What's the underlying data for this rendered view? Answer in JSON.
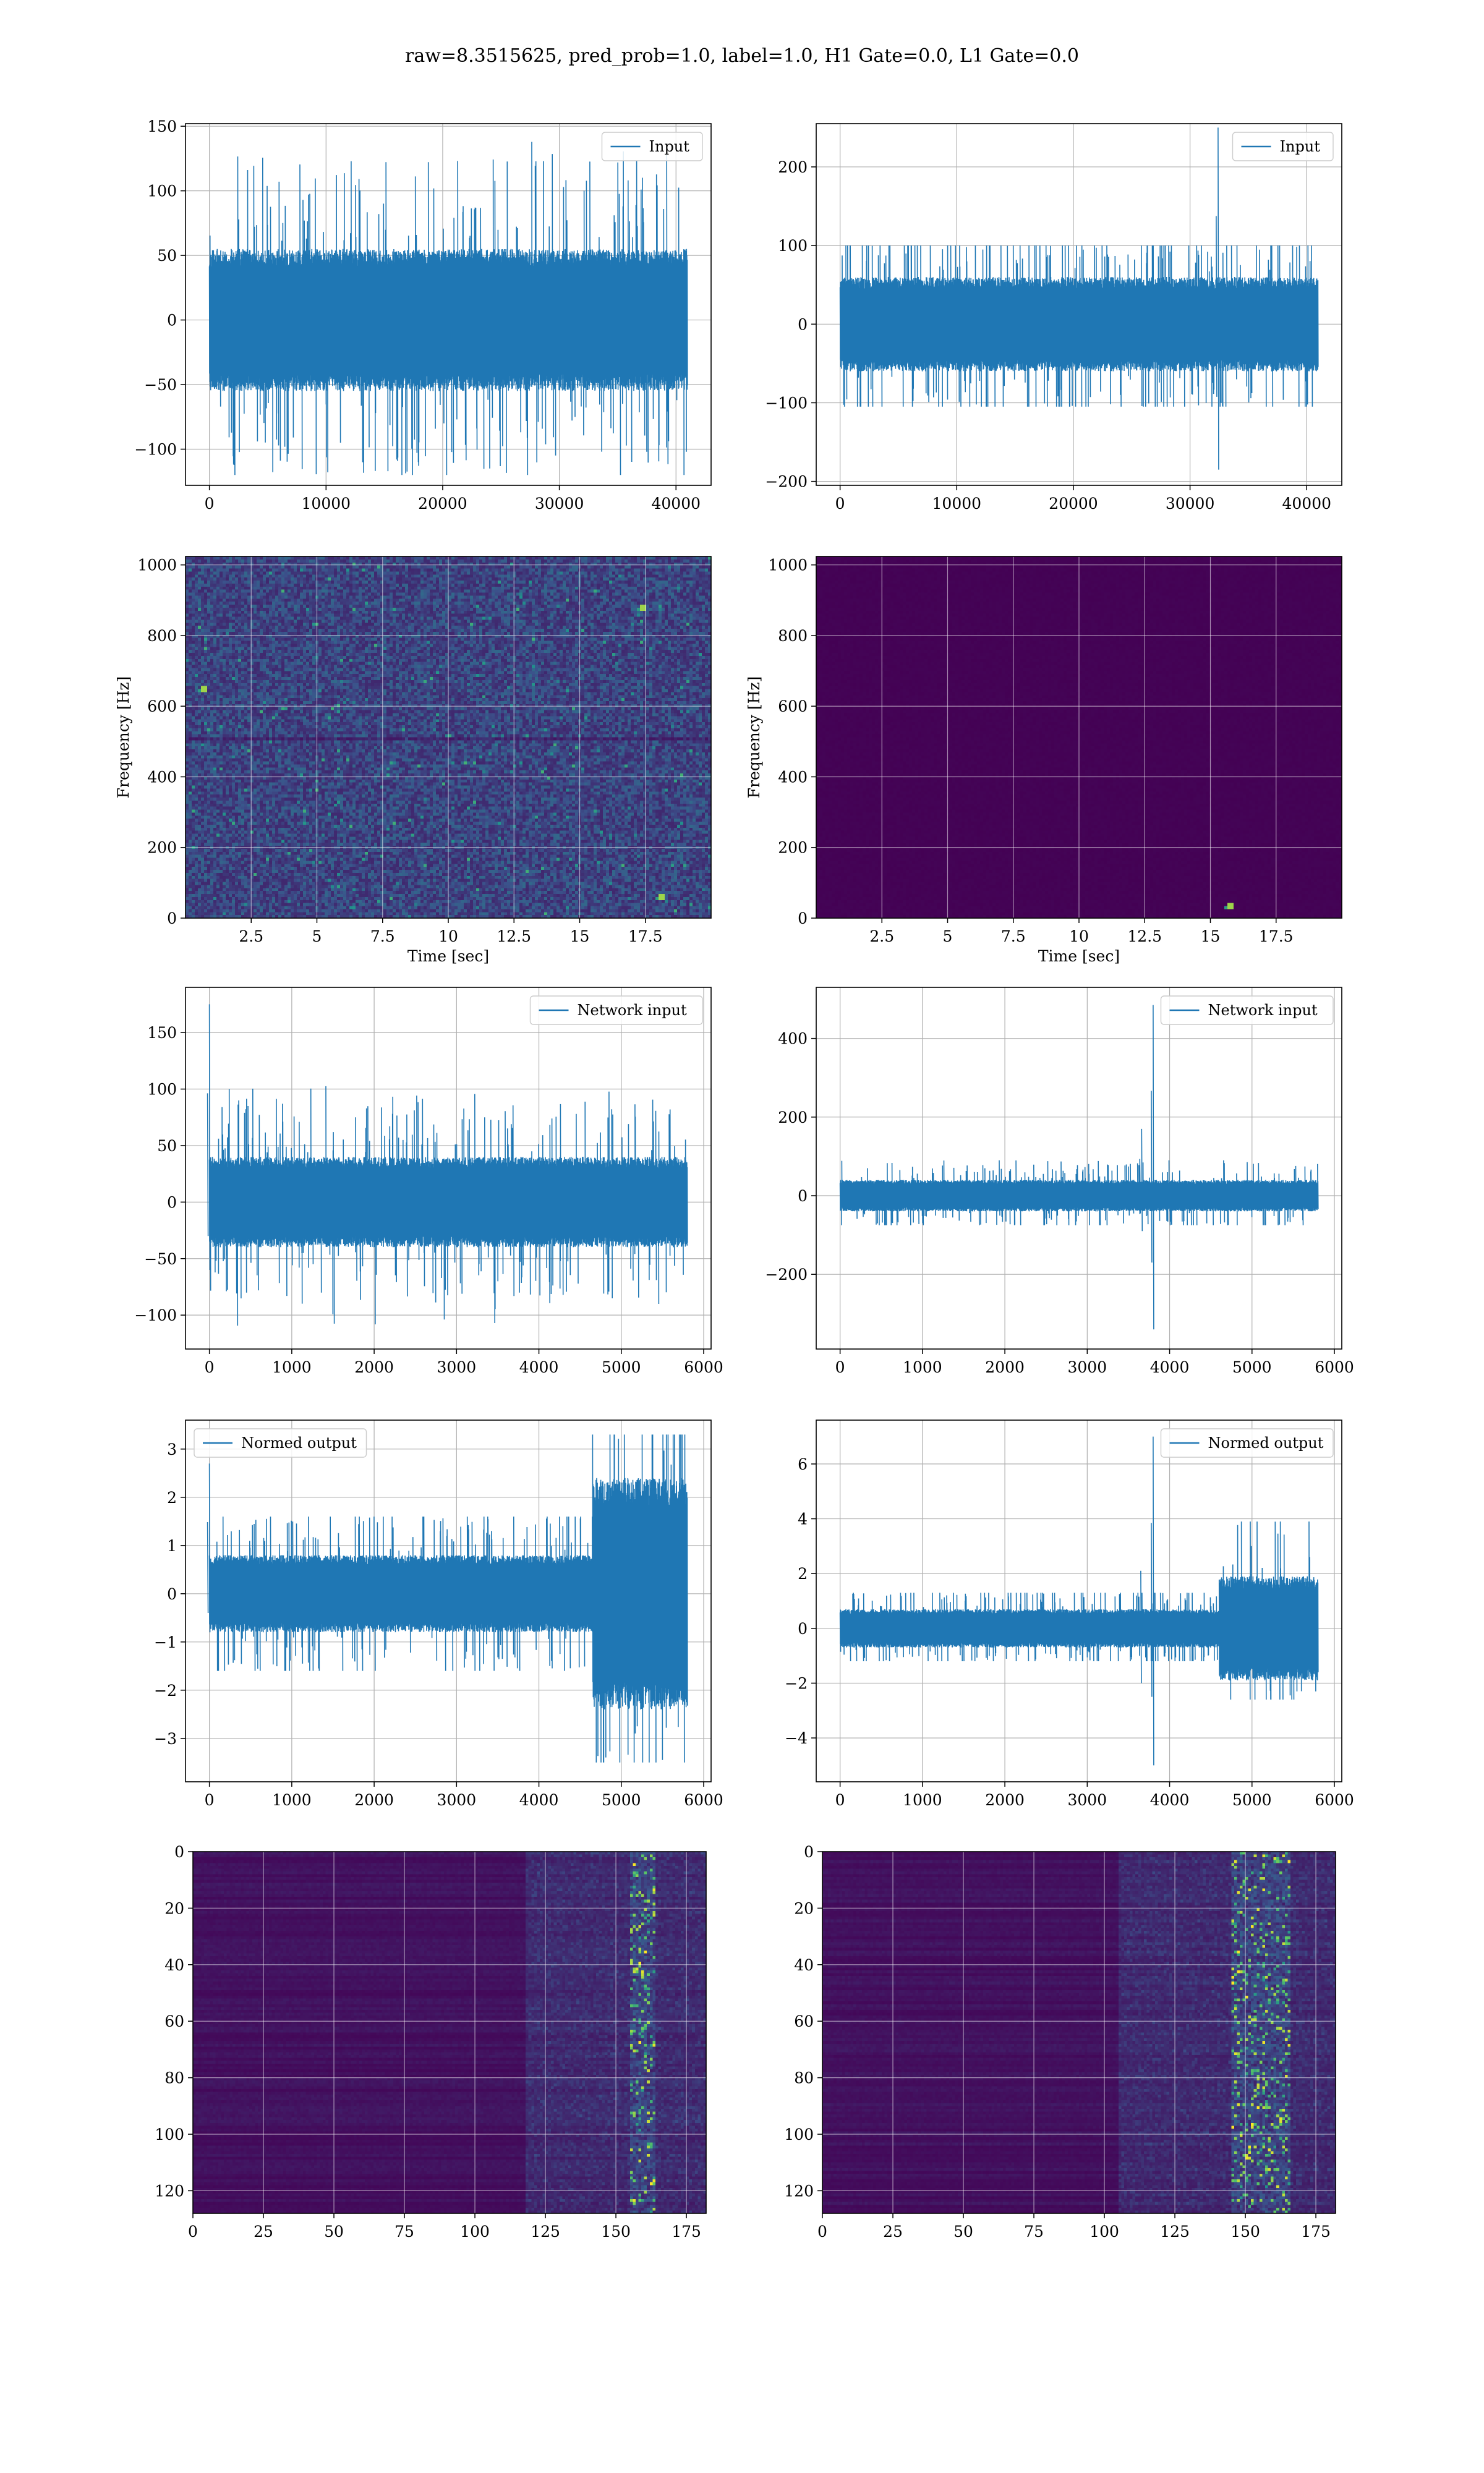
{
  "figure": {
    "suptitle": "raw=8.3515625, pred_prob=1.0, label=1.0, H1 Gate=0.0, L1 Gate=0.0"
  },
  "colors": {
    "series": "#1f77b4",
    "grid": "#b0b0b0",
    "viridis_low": "#440154",
    "viridis_mid": "#21918c",
    "viridis_high": "#fde725"
  },
  "chart_data": [
    {
      "id": "p1",
      "type": "line",
      "series": [
        {
          "name": "Input"
        }
      ],
      "x": {
        "min": 0,
        "max": 40960
      },
      "xlim": [
        -2048,
        43008
      ],
      "xticks": [
        0,
        10000,
        20000,
        30000,
        40000
      ],
      "ylim": [
        -128,
        152
      ],
      "yticks": [
        -100,
        -50,
        0,
        50,
        100,
        150
      ],
      "envelope": {
        "baseline": 0,
        "typical_amp": 55,
        "max_pos": 138,
        "max_neg": -120
      },
      "legend": "upper right",
      "grid": true,
      "xlabel": "",
      "ylabel": ""
    },
    {
      "id": "p2",
      "type": "line",
      "series": [
        {
          "name": "Input"
        }
      ],
      "x": {
        "min": 0,
        "max": 40960
      },
      "xlim": [
        -2048,
        43008
      ],
      "xticks": [
        0,
        10000,
        20000,
        30000,
        40000
      ],
      "ylim": [
        -205,
        255
      ],
      "yticks": [
        -200,
        -100,
        0,
        100,
        200
      ],
      "envelope": {
        "baseline": 0,
        "typical_amp": 60,
        "max_pos": 100,
        "max_neg": -105
      },
      "spikes": [
        {
          "x": 32400,
          "hi": 250,
          "lo": -185
        }
      ],
      "legend": "upper right",
      "grid": true,
      "xlabel": "",
      "ylabel": ""
    },
    {
      "id": "p3",
      "type": "heatmap",
      "subtype": "spectrogram",
      "xlim": [
        0,
        20
      ],
      "xticks": [
        2.5,
        5.0,
        7.5,
        10.0,
        12.5,
        15.0,
        17.5
      ],
      "ylim": [
        0,
        1024
      ],
      "yticks": [
        0,
        200,
        400,
        600,
        800,
        1000
      ],
      "xlabel": "Time [sec]",
      "ylabel": "Frequency [Hz]",
      "texture": "noisy",
      "hot_spots": [
        {
          "t": 18.1,
          "f": 60
        },
        {
          "t": 0.7,
          "f": 650
        },
        {
          "t": 17.4,
          "f": 880
        }
      ],
      "grid": true
    },
    {
      "id": "p4",
      "type": "heatmap",
      "subtype": "spectrogram",
      "xlim": [
        0,
        20
      ],
      "xticks": [
        2.5,
        5.0,
        7.5,
        10.0,
        12.5,
        15.0,
        17.5
      ],
      "ylim": [
        0,
        1024
      ],
      "yticks": [
        0,
        200,
        400,
        600,
        800,
        1000
      ],
      "xlabel": "Time [sec]",
      "ylabel": "Frequency [Hz]",
      "texture": "flat",
      "hot_spots": [
        {
          "t": 15.8,
          "f": 30
        }
      ],
      "grid": true
    },
    {
      "id": "p5",
      "type": "line",
      "series": [
        {
          "name": "Network input"
        }
      ],
      "x": {
        "min": 0,
        "max": 5800
      },
      "xlim": [
        -290,
        6090
      ],
      "xticks": [
        0,
        1000,
        2000,
        3000,
        4000,
        5000,
        6000
      ],
      "ylim": [
        -130,
        190
      ],
      "yticks": [
        -100,
        -50,
        0,
        50,
        100,
        150
      ],
      "envelope": {
        "baseline": 0,
        "typical_amp": 40,
        "max_pos": 105,
        "max_neg": -110
      },
      "spikes": [
        {
          "x": 0,
          "hi": 175,
          "lo": -60
        }
      ],
      "legend": "upper right",
      "grid": true,
      "xlabel": "",
      "ylabel": ""
    },
    {
      "id": "p6",
      "type": "line",
      "series": [
        {
          "name": "Network input"
        }
      ],
      "x": {
        "min": 0,
        "max": 5800
      },
      "xlim": [
        -290,
        6090
      ],
      "xticks": [
        0,
        1000,
        2000,
        3000,
        4000,
        5000,
        6000
      ],
      "ylim": [
        -390,
        530
      ],
      "yticks": [
        -200,
        0,
        200,
        400
      ],
      "envelope": {
        "baseline": 0,
        "typical_amp": 40,
        "max_pos": 90,
        "max_neg": -75
      },
      "spikes": [
        {
          "x": 3800,
          "hi": 485,
          "lo": -340
        },
        {
          "x": 3660,
          "hi": 170,
          "lo": -90
        }
      ],
      "legend": "upper right",
      "grid": true,
      "xlabel": "",
      "ylabel": ""
    },
    {
      "id": "p7",
      "type": "line",
      "series": [
        {
          "name": "Normed output"
        }
      ],
      "x": {
        "min": 0,
        "max": 5800
      },
      "xlim": [
        -290,
        6090
      ],
      "xticks": [
        0,
        1000,
        2000,
        3000,
        4000,
        5000,
        6000
      ],
      "ylim": [
        -3.9,
        3.6
      ],
      "yticks": [
        -3,
        -2,
        -1,
        0,
        1,
        2,
        3
      ],
      "envelope": {
        "baseline": 0,
        "typical_amp": 0.8,
        "max_pos": 1.6,
        "max_neg": -1.6
      },
      "bursts": [
        {
          "x0": 4650,
          "x1": 5800,
          "amp": 2.4,
          "peak": 3.3,
          "trough": -3.5
        }
      ],
      "spikes": [
        {
          "x": 0,
          "hi": 2.7,
          "lo": -0.8
        }
      ],
      "legend": "upper left",
      "grid": true,
      "xlabel": "",
      "ylabel": ""
    },
    {
      "id": "p8",
      "type": "line",
      "series": [
        {
          "name": "Normed output"
        }
      ],
      "x": {
        "min": 0,
        "max": 5800
      },
      "xlim": [
        -290,
        6090
      ],
      "xticks": [
        0,
        1000,
        2000,
        3000,
        4000,
        5000,
        6000
      ],
      "ylim": [
        -5.6,
        7.6
      ],
      "yticks": [
        -4,
        -2,
        0,
        2,
        4,
        6
      ],
      "envelope": {
        "baseline": 0,
        "typical_amp": 0.7,
        "max_pos": 1.3,
        "max_neg": -1.2
      },
      "bursts": [
        {
          "x0": 4600,
          "x1": 5800,
          "amp": 1.9,
          "peak": 3.9,
          "trough": -2.6
        }
      ],
      "spikes": [
        {
          "x": 3800,
          "hi": 7.0,
          "lo": -5.0
        },
        {
          "x": 3650,
          "hi": 2.1,
          "lo": -2.0
        }
      ],
      "legend": "upper right",
      "grid": true,
      "xlabel": "",
      "ylabel": ""
    },
    {
      "id": "p9",
      "type": "heatmap",
      "subtype": "image",
      "xlim": [
        0,
        182
      ],
      "xticks": [
        0,
        25,
        50,
        75,
        100,
        125,
        150,
        175
      ],
      "ylim": [
        128,
        0
      ],
      "yticks": [
        0,
        20,
        40,
        60,
        80,
        100,
        120
      ],
      "rows": 128,
      "cols": 182,
      "active_cols": [
        118,
        182
      ],
      "bright_cols": [
        155,
        163
      ],
      "grid": true,
      "xlabel": "",
      "ylabel": ""
    },
    {
      "id": "p10",
      "type": "heatmap",
      "subtype": "image",
      "xlim": [
        0,
        182
      ],
      "xticks": [
        0,
        25,
        50,
        75,
        100,
        125,
        150,
        175
      ],
      "ylim": [
        128,
        0
      ],
      "yticks": [
        0,
        20,
        40,
        60,
        80,
        100,
        120
      ],
      "rows": 128,
      "cols": 182,
      "active_cols": [
        105,
        182
      ],
      "bright_cols": [
        145,
        165
      ],
      "grid": true,
      "xlabel": "",
      "ylabel": ""
    }
  ]
}
